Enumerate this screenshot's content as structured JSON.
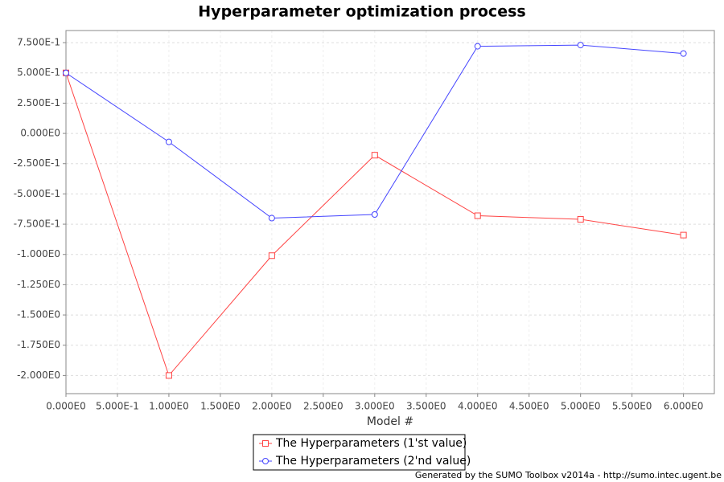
{
  "chart_data": {
    "type": "line",
    "title": "Hyperparameter optimization process",
    "x_label": "Model #",
    "footer": "Generated by the SUMO Toolbox v2014a - http://sumo.intec.ugent.be",
    "x": [
      0,
      1,
      2,
      3,
      4,
      5,
      6
    ],
    "series": [
      {
        "name": "The Hyperparameters (1'st value)",
        "color": "#ff4444",
        "marker": "square",
        "values": [
          0.5,
          -2.0,
          -1.01,
          -0.18,
          -0.68,
          -0.71,
          -0.84
        ]
      },
      {
        "name": "The Hyperparameters (2'nd value)",
        "color": "#4444ff",
        "marker": "circle",
        "values": [
          0.5,
          -0.07,
          -0.7,
          -0.67,
          0.72,
          0.73,
          0.66
        ]
      }
    ],
    "xlim": [
      0,
      6.3
    ],
    "ylim": [
      -2.15,
      0.85
    ],
    "xticks": [
      {
        "value": 0,
        "label": "0.000E0"
      },
      {
        "value": 0.5,
        "label": "5.000E-1"
      },
      {
        "value": 1,
        "label": "1.000E0"
      },
      {
        "value": 1.5,
        "label": "1.500E0"
      },
      {
        "value": 2,
        "label": "2.000E0"
      },
      {
        "value": 2.5,
        "label": "2.500E0"
      },
      {
        "value": 3,
        "label": "3.000E0"
      },
      {
        "value": 3.5,
        "label": "3.500E0"
      },
      {
        "value": 4,
        "label": "4.000E0"
      },
      {
        "value": 4.5,
        "label": "4.500E0"
      },
      {
        "value": 5,
        "label": "5.000E0"
      },
      {
        "value": 5.5,
        "label": "5.500E0"
      },
      {
        "value": 6,
        "label": "6.000E0"
      }
    ],
    "yticks": [
      {
        "value": -2.0,
        "label": "-2.000E0"
      },
      {
        "value": -1.75,
        "label": "-1.750E0"
      },
      {
        "value": -1.5,
        "label": "-1.500E0"
      },
      {
        "value": -1.25,
        "label": "-1.250E0"
      },
      {
        "value": -1.0,
        "label": "-1.000E0"
      },
      {
        "value": -0.75,
        "label": "-7.500E-1"
      },
      {
        "value": -0.5,
        "label": "-5.000E-1"
      },
      {
        "value": -0.25,
        "label": "-2.500E-1"
      },
      {
        "value": 0,
        "label": "0.000E0"
      },
      {
        "value": 0.25,
        "label": "2.500E-1"
      },
      {
        "value": 0.5,
        "label": "5.000E-1"
      },
      {
        "value": 0.75,
        "label": "7.500E-1"
      }
    ],
    "grid": true
  }
}
